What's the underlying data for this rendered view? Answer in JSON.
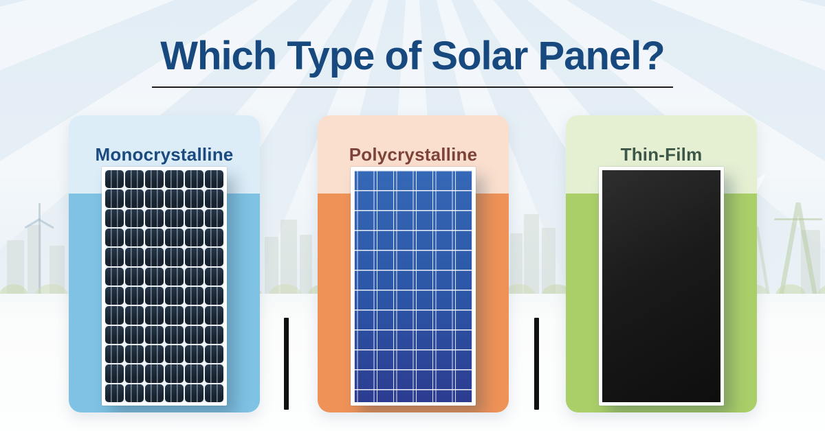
{
  "title": {
    "text": "Which Type of Solar Panel?",
    "color": "#17497E",
    "underline_color": "#1C1C1C"
  },
  "cards": [
    {
      "label": "Monocrystalline",
      "panel": "monocrystalline-solar-panel",
      "colors": {
        "header_bg": "#DCEDF8",
        "body_bg": "#7FC2E4",
        "label": "#1B4A7E",
        "cell": "#18232F"
      }
    },
    {
      "label": "Polycrystalline",
      "panel": "polycrystalline-solar-panel",
      "colors": {
        "header_bg": "#FBDFCE",
        "body_bg": "#EF9258",
        "label": "#7E4338",
        "cell_top": "#3568B6",
        "cell_bottom": "#2C3C90"
      }
    },
    {
      "label": "Thin-Film",
      "panel": "thin-film-solar-panel",
      "colors": {
        "header_bg": "#E5F0D3",
        "body_bg": "#AACE68",
        "label": "#3E5648",
        "cell": "#161616"
      }
    }
  ],
  "panels": {
    "mono": {
      "rows": 12,
      "cols": 6
    }
  },
  "background": {
    "sky": "#E3EDF5",
    "ground": "#FBFCFC",
    "divider_color": "#101010"
  }
}
